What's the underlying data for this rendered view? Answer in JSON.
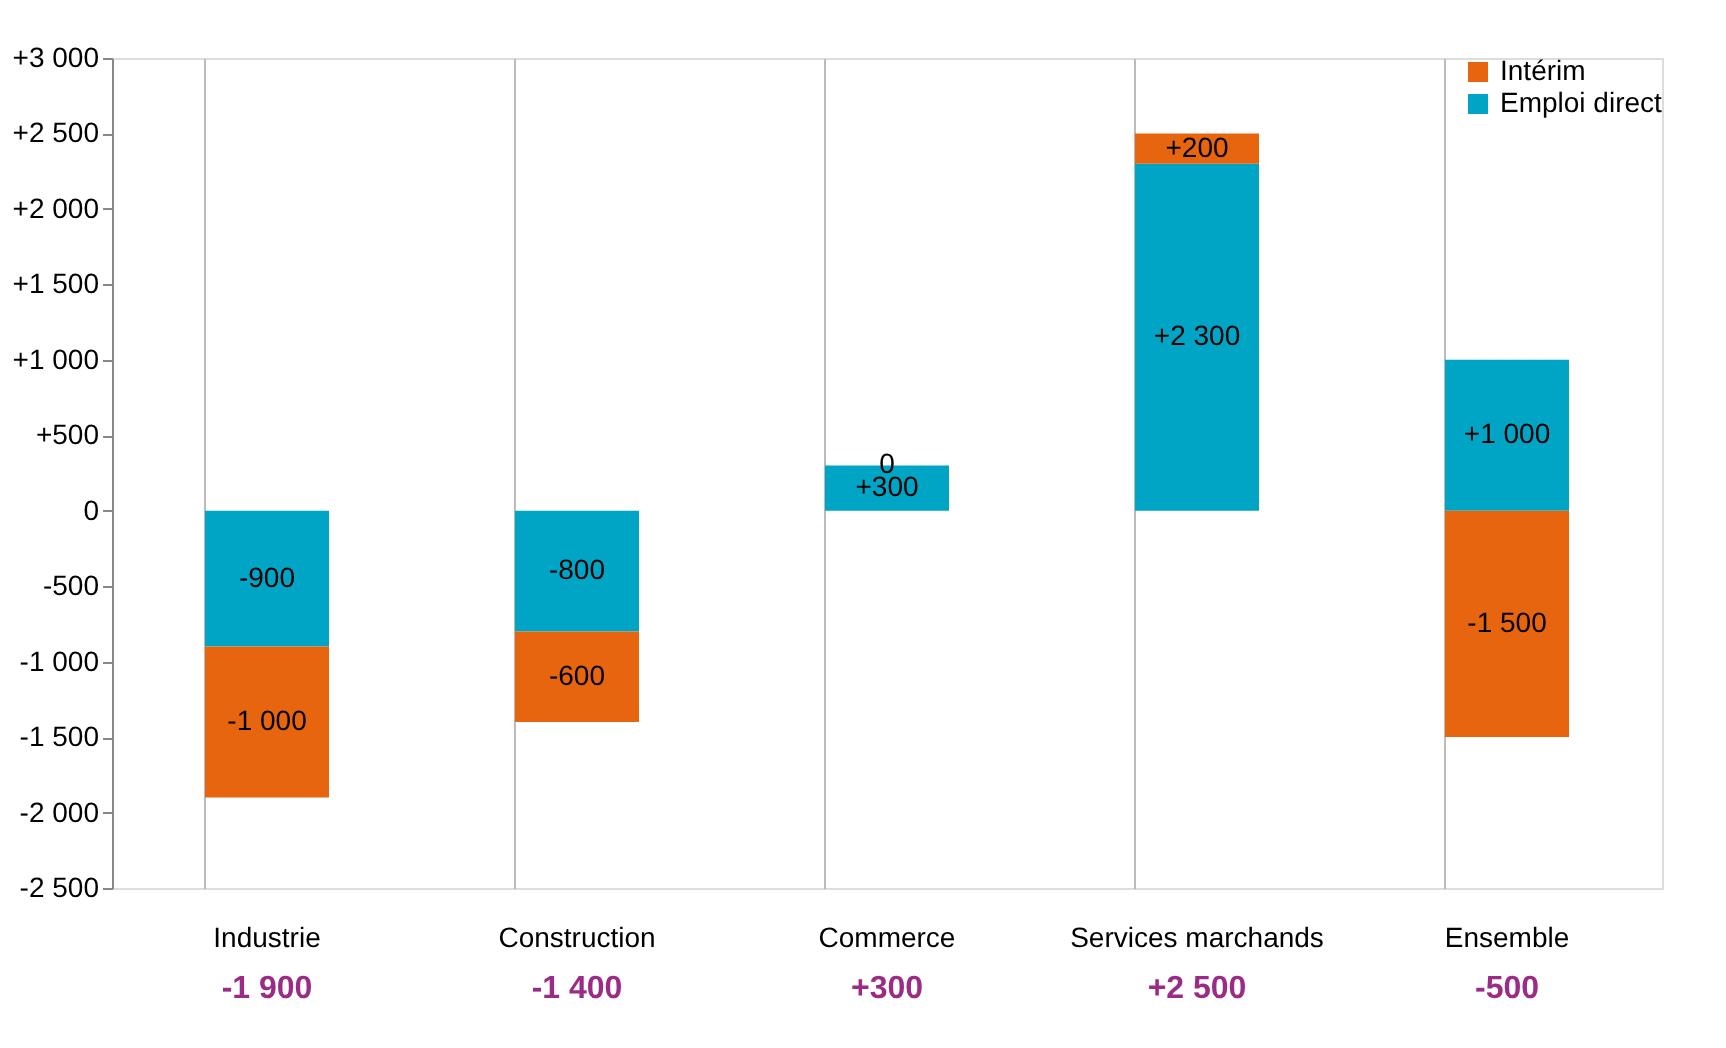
{
  "chart_data": {
    "type": "bar",
    "stacked": true,
    "categories": [
      "Industrie",
      "Construction",
      "Commerce",
      "Services marchands",
      "Ensemble"
    ],
    "series": [
      {
        "name": "Emploi direct",
        "color": "#00a5c6",
        "values": [
          -900,
          -800,
          300,
          2300,
          1000
        ],
        "value_labels": [
          "-900",
          "-800",
          "+300",
          "+2 300",
          "+1 000"
        ]
      },
      {
        "name": "Intérim",
        "color": "#e8650f",
        "values": [
          -1000,
          -600,
          0,
          200,
          -1500
        ],
        "value_labels": [
          "-1 000",
          "-600",
          "0",
          "+200",
          "-1 500"
        ]
      }
    ],
    "annotations": [
      "-1 900",
      "-1 400",
      "+300",
      "+2 500",
      "-500"
    ],
    "ylim": [
      -2500,
      3000
    ],
    "yticks": [
      {
        "value": 3000,
        "label": "+3 000"
      },
      {
        "value": 2500,
        "label": "+2 500"
      },
      {
        "value": 2000,
        "label": "+2 000"
      },
      {
        "value": 1500,
        "label": "+1 500"
      },
      {
        "value": 1000,
        "label": "+1 000"
      },
      {
        "value": 500,
        "label": "+500"
      },
      0,
      {
        "value": -500,
        "label": "-500"
      },
      {
        "value": -1000,
        "label": "-1 000"
      },
      {
        "value": -1500,
        "label": "-1 500"
      },
      {
        "value": -2000,
        "label": "-2 000"
      },
      {
        "value": -2500,
        "label": "-2 500"
      }
    ],
    "grid": "x",
    "legend": "top right"
  }
}
